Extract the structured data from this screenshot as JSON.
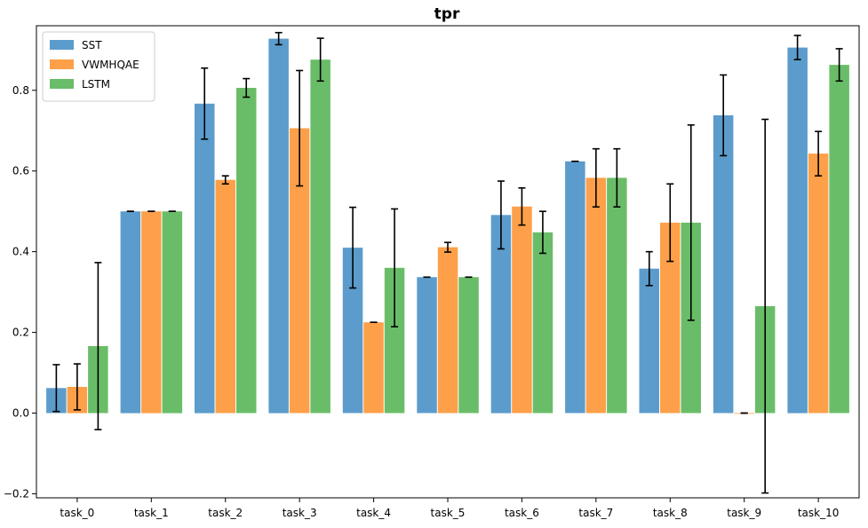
{
  "chart_data": {
    "type": "bar",
    "title": "tpr",
    "xlabel": "",
    "ylabel": "",
    "categories": [
      "task_0",
      "task_1",
      "task_2",
      "task_3",
      "task_4",
      "task_5",
      "task_6",
      "task_7",
      "task_8",
      "task_9",
      "task_10"
    ],
    "series": [
      {
        "name": "SST",
        "color": "#5b9ccc",
        "values": [
          0.062,
          0.5,
          0.767,
          0.928,
          0.41,
          0.337,
          0.491,
          0.624,
          0.358,
          0.738,
          0.906
        ],
        "errors": [
          0.058,
          0.0,
          0.088,
          0.015,
          0.1,
          0.0,
          0.084,
          0.0,
          0.042,
          0.1,
          0.03
        ]
      },
      {
        "name": "VWMHQAE",
        "color": "#fda049",
        "values": [
          0.065,
          0.5,
          0.578,
          0.706,
          0.225,
          0.411,
          0.512,
          0.583,
          0.472,
          0.0,
          0.643
        ],
        "errors": [
          0.057,
          0.0,
          0.01,
          0.143,
          0.0,
          0.012,
          0.046,
          0.072,
          0.096,
          0.0,
          0.055
        ]
      },
      {
        "name": "LSTM",
        "color": "#6abd68",
        "values": [
          0.166,
          0.5,
          0.806,
          0.876,
          0.36,
          0.337,
          0.448,
          0.583,
          0.472,
          0.265,
          0.863
        ],
        "errors": [
          0.207,
          0.0,
          0.023,
          0.053,
          0.146,
          0.0,
          0.052,
          0.072,
          0.242,
          0.463,
          0.04
        ]
      }
    ],
    "yticks": [
      "0.0",
      "0.2",
      "0.4",
      "0.6",
      "0.8",
      "-0.2"
    ],
    "ytick_values": [
      0.0,
      0.2,
      0.4,
      0.6,
      0.8,
      -0.2
    ],
    "ylim": [
      -0.21,
      0.96
    ],
    "grid": false,
    "legend_position": "top-left"
  }
}
